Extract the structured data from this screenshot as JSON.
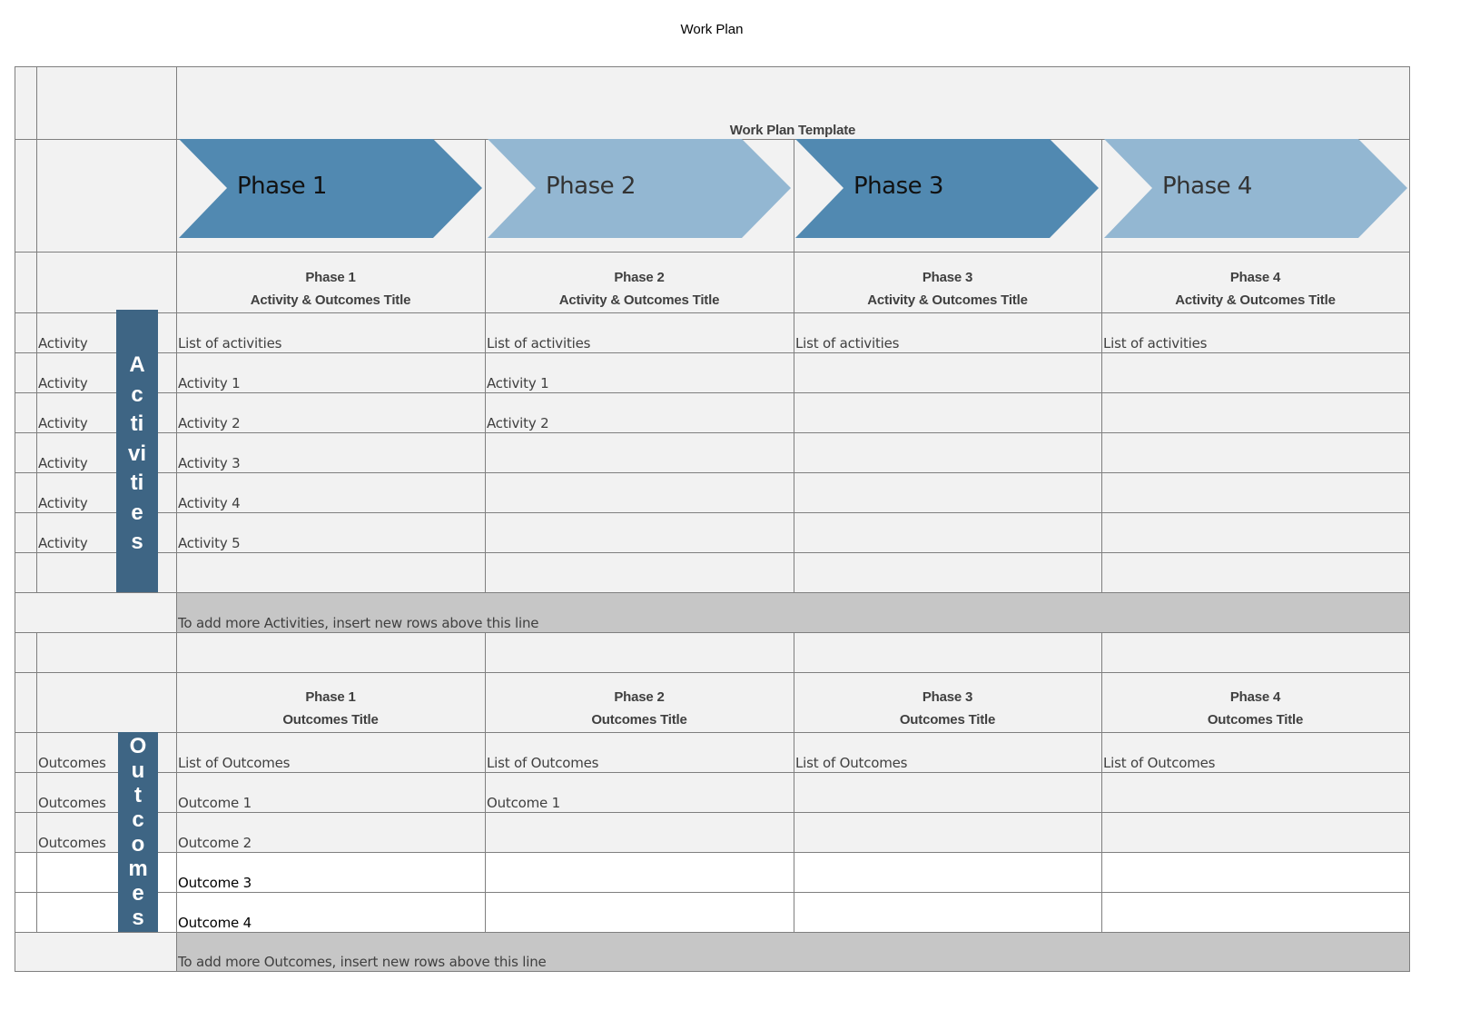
{
  "document_title": "Work Plan",
  "template_title": "Work Plan Template",
  "colors": {
    "chevron_dark": "#5189b1",
    "chevron_light": "#93b7d2",
    "accent": "#3e6585",
    "banner": "#3e6584",
    "note_row": "#c6c6c6"
  },
  "phases": [
    {
      "label": "Phase 1",
      "activity_header_1": "Phase 1",
      "activity_header_2": "Activity & Outcomes Title",
      "outcome_header_1": "Phase 1",
      "outcome_header_2": "Outcomes Title",
      "shade": "dark"
    },
    {
      "label": "Phase 2",
      "activity_header_1": "Phase 2",
      "activity_header_2": "Activity & Outcomes Title",
      "outcome_header_1": "Phase 2",
      "outcome_header_2": "Outcomes Title",
      "shade": "light"
    },
    {
      "label": "Phase 3",
      "activity_header_1": "Phase 3",
      "activity_header_2": "Activity & Outcomes Title",
      "outcome_header_1": "Phase 3",
      "outcome_header_2": "Outcomes Title",
      "shade": "dark"
    },
    {
      "label": "Phase 4",
      "activity_header_1": "Phase 4",
      "activity_header_2": "Activity & Outcomes Title",
      "outcome_header_1": "Phase 4",
      "outcome_header_2": "Outcomes Title",
      "shade": "light"
    }
  ],
  "activities": {
    "banner": [
      "A",
      "c",
      "ti",
      "vi",
      "ti",
      "e",
      "s"
    ],
    "rows": [
      {
        "label": "Activity",
        "cells": [
          "List of activities",
          "List of activities",
          "List of activities",
          "List of activities"
        ]
      },
      {
        "label": "Activity",
        "cells": [
          "Activity 1",
          "Activity 1",
          "",
          ""
        ]
      },
      {
        "label": "Activity",
        "cells": [
          "Activity 2",
          "Activity 2",
          "",
          ""
        ]
      },
      {
        "label": "Activity",
        "cells": [
          "Activity 3",
          "",
          "",
          ""
        ]
      },
      {
        "label": "Activity",
        "cells": [
          "Activity 4",
          "",
          "",
          ""
        ]
      },
      {
        "label": "Activity",
        "cells": [
          "Activity 5",
          "",
          "",
          ""
        ]
      },
      {
        "label": "",
        "cells": [
          "",
          "",
          "",
          ""
        ]
      }
    ],
    "note": "To add more Activities, insert new rows above this line"
  },
  "outcomes": {
    "banner": [
      "O",
      "u",
      "t",
      "c",
      "o",
      "m",
      "e",
      "s"
    ],
    "rows": [
      {
        "label": "Outcomes",
        "cells": [
          "List of Outcomes",
          "List of Outcomes",
          "List of Outcomes",
          "List of Outcomes"
        ]
      },
      {
        "label": "Outcomes",
        "cells": [
          "Outcome 1",
          "Outcome 1",
          "",
          ""
        ]
      },
      {
        "label": "Outcomes",
        "cells": [
          "Outcome 2",
          "",
          "",
          ""
        ]
      },
      {
        "label": "",
        "cells": [
          "Outcome 3",
          "",
          "",
          ""
        ]
      },
      {
        "label": "",
        "cells": [
          "Outcome 4",
          "",
          "",
          ""
        ]
      }
    ],
    "note": "To add more Outcomes, insert new rows above this line"
  }
}
